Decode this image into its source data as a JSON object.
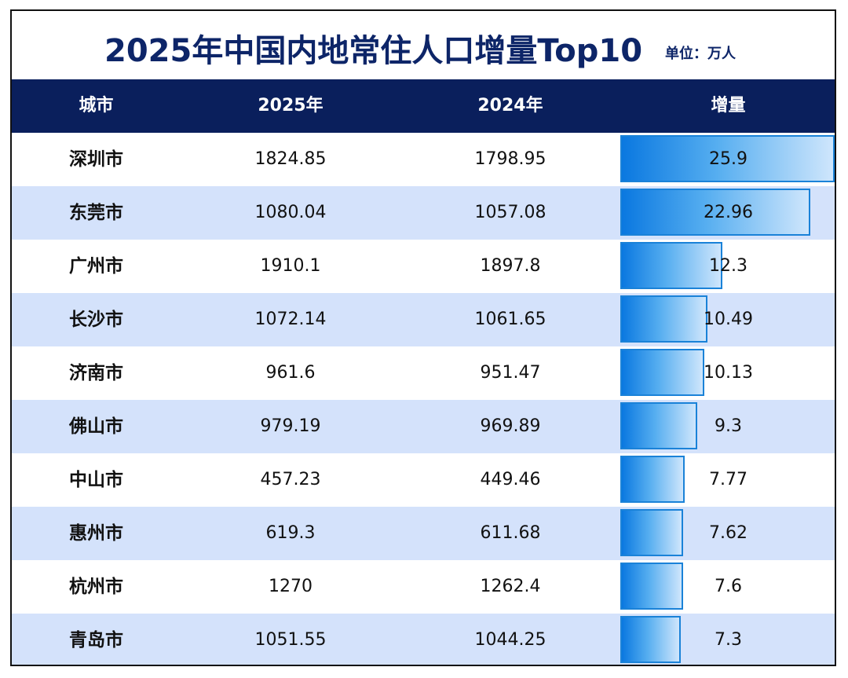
{
  "title": "2025年中国内地常住人口增量Top10",
  "unit": "单位：万人",
  "columns": [
    "城市",
    "2025年",
    "2024年",
    "增量"
  ],
  "chart_data": {
    "type": "table",
    "title": "2025年中国内地常住人口增量Top10",
    "unit": "单位：万人",
    "columns": [
      "城市",
      "2025年",
      "2024年",
      "增量"
    ],
    "rows": [
      {
        "city": "深圳市",
        "y2025": "1824.85",
        "y2024": "1798.95",
        "increase": "25.9"
      },
      {
        "city": "东莞市",
        "y2025": "1080.04",
        "y2024": "1057.08",
        "increase": "22.96"
      },
      {
        "city": "广州市",
        "y2025": "1910.1",
        "y2024": "1897.8",
        "increase": "12.3"
      },
      {
        "city": "长沙市",
        "y2025": "1072.14",
        "y2024": "1061.65",
        "increase": "10.49"
      },
      {
        "city": "济南市",
        "y2025": "961.6",
        "y2024": "951.47",
        "increase": "10.13"
      },
      {
        "city": "佛山市",
        "y2025": "979.19",
        "y2024": "969.89",
        "increase": "9.3"
      },
      {
        "city": "中山市",
        "y2025": "457.23",
        "y2024": "449.46",
        "increase": "7.77"
      },
      {
        "city": "惠州市",
        "y2025": "619.3",
        "y2024": "611.68",
        "increase": "7.62"
      },
      {
        "city": "杭州市",
        "y2025": "1270",
        "y2024": "1262.4",
        "increase": "7.6"
      },
      {
        "city": "青岛市",
        "y2025": "1051.55",
        "y2024": "1044.25",
        "increase": "7.3"
      }
    ]
  },
  "colors": {
    "header_bg": "#0a1f5c",
    "title": "#0d2568",
    "row_alt": "#d4e2fb",
    "bar_border": "#1a82d8",
    "bar_start": "#0a78e0",
    "bar_end": "#cfe6fc"
  }
}
